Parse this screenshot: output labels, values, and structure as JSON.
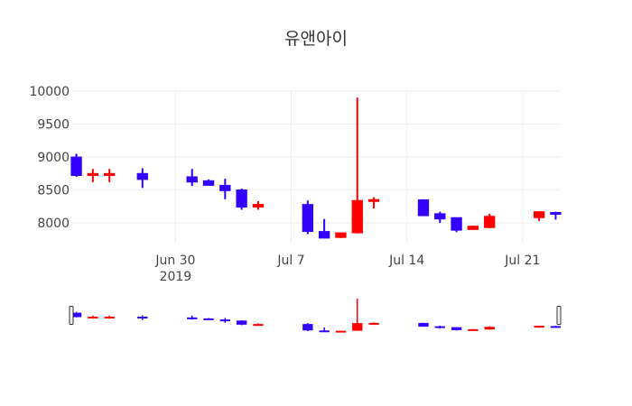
{
  "chart_data": {
    "type": "candlestick",
    "title": "유앤아이",
    "xlabel": "",
    "ylabel": "",
    "ylim": [
      7700,
      10000
    ],
    "x_range": [
      "2019-06-24",
      "2019-07-23"
    ],
    "grid": true,
    "legend": "none",
    "increasing_color": "#ff0000",
    "decreasing_color": "#3300ff",
    "y_ticks": [
      8000,
      8500,
      9000,
      9500,
      10000
    ],
    "x_ticks": [
      {
        "date": "2019-06-30",
        "label": "Jun 30",
        "sublabel": "2019"
      },
      {
        "date": "2019-07-07",
        "label": "Jul 7",
        "sublabel": ""
      },
      {
        "date": "2019-07-14",
        "label": "Jul 14",
        "sublabel": ""
      },
      {
        "date": "2019-07-21",
        "label": "Jul 21",
        "sublabel": ""
      }
    ],
    "range_slider": true,
    "candles": [
      {
        "date": "2019-06-24",
        "open": 9000,
        "high": 9050,
        "low": 8700,
        "close": 8720
      },
      {
        "date": "2019-06-25",
        "open": 8720,
        "high": 8820,
        "low": 8620,
        "close": 8750
      },
      {
        "date": "2019-06-26",
        "open": 8720,
        "high": 8820,
        "low": 8620,
        "close": 8750
      },
      {
        "date": "2019-06-28",
        "open": 8750,
        "high": 8830,
        "low": 8530,
        "close": 8660
      },
      {
        "date": "2019-07-01",
        "open": 8700,
        "high": 8820,
        "low": 8560,
        "close": 8620
      },
      {
        "date": "2019-07-02",
        "open": 8640,
        "high": 8660,
        "low": 8570,
        "close": 8570
      },
      {
        "date": "2019-07-03",
        "open": 8570,
        "high": 8670,
        "low": 8360,
        "close": 8490
      },
      {
        "date": "2019-07-04",
        "open": 8500,
        "high": 8520,
        "low": 8200,
        "close": 8240
      },
      {
        "date": "2019-07-05",
        "open": 8240,
        "high": 8330,
        "low": 8200,
        "close": 8280
      },
      {
        "date": "2019-07-08",
        "open": 8280,
        "high": 8340,
        "low": 7830,
        "close": 7870
      },
      {
        "date": "2019-07-09",
        "open": 7870,
        "high": 8060,
        "low": 7770,
        "close": 7770
      },
      {
        "date": "2019-07-10",
        "open": 7780,
        "high": 7850,
        "low": 7770,
        "close": 7850
      },
      {
        "date": "2019-07-11",
        "open": 7850,
        "high": 9900,
        "low": 7840,
        "close": 8340
      },
      {
        "date": "2019-07-12",
        "open": 8330,
        "high": 8390,
        "low": 8220,
        "close": 8350
      },
      {
        "date": "2019-07-15",
        "open": 8350,
        "high": 8360,
        "low": 8110,
        "close": 8110
      },
      {
        "date": "2019-07-16",
        "open": 8140,
        "high": 8170,
        "low": 8000,
        "close": 8060
      },
      {
        "date": "2019-07-17",
        "open": 8080,
        "high": 8080,
        "low": 7860,
        "close": 7890
      },
      {
        "date": "2019-07-18",
        "open": 7900,
        "high": 7960,
        "low": 7900,
        "close": 7950
      },
      {
        "date": "2019-07-19",
        "open": 7930,
        "high": 8140,
        "low": 7920,
        "close": 8100
      },
      {
        "date": "2019-07-22",
        "open": 8080,
        "high": 8170,
        "low": 8030,
        "close": 8170
      },
      {
        "date": "2019-07-23",
        "open": 8150,
        "high": 8170,
        "low": 8050,
        "close": 8140
      }
    ]
  }
}
